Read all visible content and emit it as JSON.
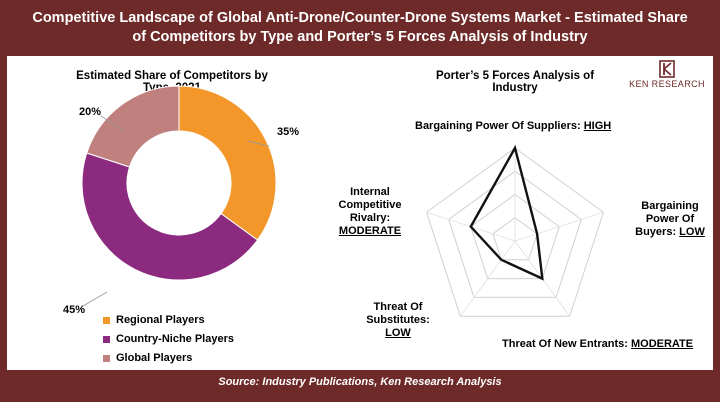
{
  "title_line1": "Competitive Landscape of Global Anti-Drone/Counter-Drone Systems Market - Estimated Share",
  "title_line2": "of Competitors by Type and Porter’s 5 Forces Analysis of Industry",
  "source": "Source: Industry Publications, Ken Research Analysis",
  "logo_text": "KEN RESEARCH",
  "chart_data": [
    {
      "type": "pie",
      "style": "donut",
      "title_line1": "Estimated Share of Competitors by",
      "title_line2": "Type, 2021",
      "legend_position": "bottom",
      "slices": [
        {
          "name": "Regional Players",
          "value": 35,
          "label": "35%",
          "color": "#f4972a"
        },
        {
          "name": "Country-Niche Players",
          "value": 45,
          "label": "45%",
          "color": "#8b2a7e"
        },
        {
          "name": "Global Players",
          "value": 20,
          "label": "20%",
          "color": "#c0807e"
        }
      ]
    },
    {
      "type": "radar",
      "title_line1": "Porter’s 5 Forces Analysis of",
      "title_line2": "Industry",
      "scale_levels": 4,
      "max": 4,
      "axes": [
        {
          "name": "Bargaining Power Of Suppliers",
          "level": "HIGH",
          "value": 4
        },
        {
          "name": "Bargaining Power Of Buyers",
          "level": "LOW",
          "value": 1
        },
        {
          "name": "Threat Of New Entrants",
          "level": "MODERATE",
          "value": 2
        },
        {
          "name": "Threat Of Substitutes",
          "level": "LOW",
          "value": 1
        },
        {
          "name": "Internal Competitive Rivalry",
          "level": "MODERATE",
          "value": 2
        }
      ],
      "axis_label_lines": [
        [
          "Bargaining Power Of Suppliers: "
        ],
        [
          "Bargaining",
          "Power Of",
          "Buyers: "
        ],
        [
          "Threat Of New Entrants: "
        ],
        [
          "Threat Of",
          "Substitutes:",
          ""
        ],
        [
          "Internal",
          "Competitive",
          "Rivalry:",
          ""
        ]
      ]
    }
  ]
}
